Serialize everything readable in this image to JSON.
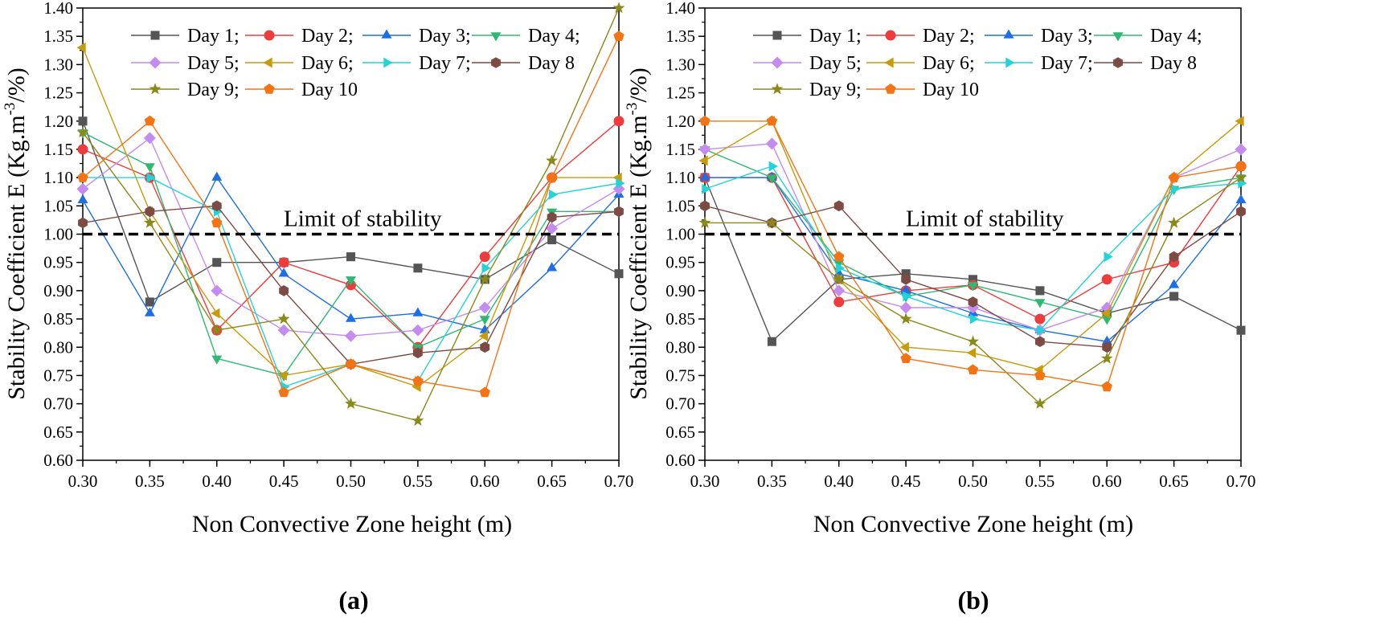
{
  "colors": {
    "Day 1": "#555555",
    "Day 2": "#ee3b3b",
    "Day 3": "#1e6ee6",
    "Day 4": "#2eb872",
    "Day 5": "#c58cf0",
    "Day 6": "#c89b0a",
    "Day 7": "#22d3d8",
    "Day 8": "#7d4a44",
    "Day 9": "#8a8a1a",
    "Day 10": "#f47414"
  },
  "series_meta": [
    {
      "name": "Day 1",
      "marker": "square",
      "legend": "Day 1;"
    },
    {
      "name": "Day 2",
      "marker": "circle",
      "legend": "Day 2;"
    },
    {
      "name": "Day 3",
      "marker": "triangle-up",
      "legend": "Day 3;"
    },
    {
      "name": "Day 4",
      "marker": "triangle-down",
      "legend": "Day 4;"
    },
    {
      "name": "Day 5",
      "marker": "diamond",
      "legend": "Day 5;"
    },
    {
      "name": "Day 6",
      "marker": "triangle-left",
      "legend": "Day 6;"
    },
    {
      "name": "Day 7",
      "marker": "triangle-right",
      "legend": "Day 7;"
    },
    {
      "name": "Day 8",
      "marker": "hexagon",
      "legend": "Day 8"
    },
    {
      "name": "Day 9",
      "marker": "star",
      "legend": "Day 9;"
    },
    {
      "name": "Day 10",
      "marker": "pentagon",
      "legend": "Day 10"
    }
  ],
  "chart_data": [
    {
      "type": "line",
      "panel_label": "(a)",
      "xlabel": "Non Convective Zone height (m)",
      "ylabel": "Stability Coefficient E (Kg.m",
      "ylabel_sup": "-3",
      "ylabel_tail": "/%)",
      "xlim": [
        0.3,
        0.7
      ],
      "ylim": [
        0.6,
        1.4
      ],
      "x_ticks": [
        "0.30",
        "0.35",
        "0.40",
        "0.45",
        "0.50",
        "0.55",
        "0.60",
        "0.65",
        "0.70"
      ],
      "y_ticks": [
        "0.60",
        "0.65",
        "0.70",
        "0.75",
        "0.80",
        "0.85",
        "0.90",
        "0.95",
        "1.00",
        "1.05",
        "1.10",
        "1.15",
        "1.20",
        "1.25",
        "1.30",
        "1.35",
        "1.40"
      ],
      "reference_line": {
        "y": 1.0,
        "label": "Limit of stability"
      },
      "x": [
        0.3,
        0.35,
        0.4,
        0.45,
        0.5,
        0.55,
        0.6,
        0.65,
        0.7
      ],
      "series": [
        {
          "name": "Day 1",
          "values": [
            1.2,
            0.88,
            0.95,
            0.95,
            0.96,
            0.94,
            0.92,
            0.99,
            0.93
          ]
        },
        {
          "name": "Day 2",
          "values": [
            1.15,
            1.1,
            0.83,
            0.95,
            0.91,
            0.8,
            0.96,
            1.1,
            1.2
          ]
        },
        {
          "name": "Day 3",
          "values": [
            1.06,
            0.86,
            1.1,
            0.93,
            0.85,
            0.86,
            0.83,
            0.94,
            1.07
          ]
        },
        {
          "name": "Day 4",
          "values": [
            1.18,
            1.12,
            0.78,
            0.75,
            0.92,
            0.8,
            0.85,
            1.04,
            1.04
          ]
        },
        {
          "name": "Day 5",
          "values": [
            1.08,
            1.17,
            0.9,
            0.83,
            0.82,
            0.83,
            0.87,
            1.01,
            1.08
          ]
        },
        {
          "name": "Day 6",
          "values": [
            1.33,
            1.04,
            0.86,
            0.75,
            0.77,
            0.73,
            0.82,
            1.1,
            1.1
          ]
        },
        {
          "name": "Day 7",
          "values": [
            1.1,
            1.1,
            1.04,
            0.73,
            0.77,
            0.74,
            0.94,
            1.07,
            1.09
          ]
        },
        {
          "name": "Day 8",
          "values": [
            1.02,
            1.04,
            1.05,
            0.9,
            0.77,
            0.79,
            0.8,
            1.03,
            1.04
          ]
        },
        {
          "name": "Day 9",
          "values": [
            1.18,
            1.02,
            0.83,
            0.85,
            0.7,
            0.67,
            0.92,
            1.13,
            1.4
          ]
        },
        {
          "name": "Day 10",
          "values": [
            1.1,
            1.2,
            1.02,
            0.72,
            0.77,
            0.74,
            0.72,
            1.1,
            1.35
          ]
        }
      ]
    },
    {
      "type": "line",
      "panel_label": "(b)",
      "xlabel": "Non Convective Zone height (m)",
      "ylabel": "Stability Coefficient E (Kg.m",
      "ylabel_sup": "-3",
      "ylabel_tail": "/%)",
      "xlim": [
        0.3,
        0.7
      ],
      "ylim": [
        0.6,
        1.4
      ],
      "x_ticks": [
        "0.30",
        "0.35",
        "0.40",
        "0.45",
        "0.50",
        "0.55",
        "0.60",
        "0.65",
        "0.70"
      ],
      "y_ticks": [
        "0.60",
        "0.65",
        "0.70",
        "0.75",
        "0.80",
        "0.85",
        "0.90",
        "0.95",
        "1.00",
        "1.05",
        "1.10",
        "1.15",
        "1.20",
        "1.25",
        "1.30",
        "1.35",
        "1.40"
      ],
      "reference_line": {
        "y": 1.0,
        "label": "Limit of stability"
      },
      "x": [
        0.3,
        0.35,
        0.4,
        0.45,
        0.5,
        0.55,
        0.6,
        0.65,
        0.7
      ],
      "series": [
        {
          "name": "Day 1",
          "values": [
            1.1,
            0.81,
            0.92,
            0.93,
            0.92,
            0.9,
            0.86,
            0.89,
            0.83
          ]
        },
        {
          "name": "Day 2",
          "values": [
            1.1,
            1.1,
            0.88,
            0.9,
            0.91,
            0.85,
            0.92,
            0.95,
            1.12
          ]
        },
        {
          "name": "Day 3",
          "values": [
            1.1,
            1.1,
            0.93,
            0.9,
            0.86,
            0.83,
            0.81,
            0.91,
            1.06
          ]
        },
        {
          "name": "Day 4",
          "values": [
            1.15,
            1.1,
            0.95,
            0.89,
            0.91,
            0.88,
            0.85,
            1.08,
            1.1
          ]
        },
        {
          "name": "Day 5",
          "values": [
            1.15,
            1.16,
            0.9,
            0.87,
            0.87,
            0.83,
            0.87,
            1.1,
            1.15
          ]
        },
        {
          "name": "Day 6",
          "values": [
            1.13,
            1.2,
            0.92,
            0.8,
            0.79,
            0.76,
            0.86,
            1.1,
            1.2
          ]
        },
        {
          "name": "Day 7",
          "values": [
            1.08,
            1.12,
            0.94,
            0.89,
            0.85,
            0.83,
            0.96,
            1.08,
            1.09
          ]
        },
        {
          "name": "Day 8",
          "values": [
            1.05,
            1.02,
            1.05,
            0.92,
            0.88,
            0.81,
            0.8,
            0.96,
            1.04
          ]
        },
        {
          "name": "Day 9",
          "values": [
            1.02,
            1.02,
            0.92,
            0.85,
            0.81,
            0.7,
            0.78,
            1.02,
            1.1
          ]
        },
        {
          "name": "Day 10",
          "values": [
            1.2,
            1.2,
            0.96,
            0.78,
            0.76,
            0.75,
            0.73,
            1.1,
            1.12
          ]
        }
      ]
    }
  ]
}
